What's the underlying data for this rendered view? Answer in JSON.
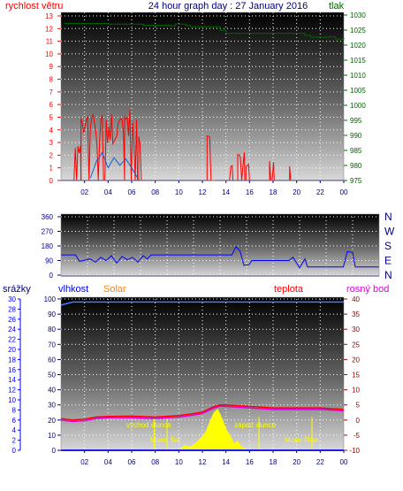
{
  "header": {
    "left_label": "rychlost větru",
    "title": "24 hour graph day : 27 January 2016",
    "right_label": "tlak"
  },
  "bottom_labels": {
    "rain": "srážky",
    "humidity": "vlhkost",
    "solar": "Solar",
    "temp": "teplota",
    "dew": "rosný bod"
  },
  "annotations": {
    "sunrise": "východ slunce",
    "sunset": "západ slunce",
    "moonset": "Moon Set",
    "moonrise": "Moon Rise"
  },
  "colors": {
    "wind": "#ff0000",
    "gust": "#1060d0",
    "pressure": "#006400",
    "direction": "#0000ff",
    "humidity": "#4080ff",
    "temp": "#ff0000",
    "dew": "#e000e0",
    "solar": "#ffff00",
    "rain": "#0000ff",
    "left_axis_wind": "#ff0000",
    "right_axis_pressure": "#006400",
    "right_axis_temp": "#a00000",
    "left_axis_rain": "#0000ff",
    "solar_label": "#ff8000"
  },
  "chart_data": [
    {
      "type": "line",
      "title": "24 hour graph day : 27 January 2016",
      "x_tick_labels": [
        "02",
        "04",
        "06",
        "08",
        "10",
        "12",
        "14",
        "16",
        "18",
        "20",
        "22",
        "00"
      ],
      "x_range_hours": [
        0,
        24
      ],
      "left_axis": {
        "label": "rychlost větru",
        "ticks": [
          0,
          1,
          2,
          3,
          4,
          5,
          6,
          7,
          8,
          9,
          10,
          11,
          12,
          13
        ],
        "ylim": [
          0,
          13
        ]
      },
      "right_axis": {
        "label": "tlak",
        "ticks": [
          975,
          980,
          985,
          990,
          995,
          1000,
          1005,
          1010,
          1015,
          1020,
          1025,
          1030
        ],
        "ylim": [
          975,
          1030
        ]
      },
      "series": [
        {
          "name": "tlak",
          "axis": "right",
          "x": [
            0.3,
            4.0,
            7.0,
            9.3,
            9.7,
            10.6,
            11.0,
            13.5,
            14.0,
            20.7,
            21.2,
            22.8,
            23.3,
            24.0
          ],
          "values": [
            1027.2,
            1027.0,
            1026.6,
            1026.4,
            1027.0,
            1026.5,
            1026.1,
            1024.9,
            1023.9,
            1023.2,
            1022.6,
            1022.8,
            1022.0,
            1022.5
          ]
        },
        {
          "name": "rychlost větru",
          "axis": "left",
          "bursts": [
            {
              "from": 1.1,
              "to": 1.7,
              "max": 3.0
            },
            {
              "from": 1.7,
              "to": 5.4,
              "max": 5.3
            },
            {
              "from": 5.4,
              "to": 6.5,
              "max": 5.7
            },
            {
              "from": 6.6,
              "to": 6.9,
              "max": 4.2
            },
            {
              "from": 12.4,
              "to": 13.1,
              "max": 3.6
            },
            {
              "from": 14.3,
              "to": 14.6,
              "max": 1.3
            },
            {
              "from": 15.0,
              "to": 15.6,
              "max": 2.4
            },
            {
              "from": 15.7,
              "to": 16.0,
              "max": 1.4
            },
            {
              "from": 17.7,
              "to": 18.1,
              "max": 1.8
            },
            {
              "from": 19.4,
              "to": 19.5,
              "max": 1.2
            }
          ]
        },
        {
          "name": "nárazy",
          "axis": "left",
          "x": [
            2.5,
            3.0,
            3.5,
            4.0,
            4.5,
            5.0,
            5.5,
            6.0,
            6.5
          ],
          "values": [
            0.2,
            1.5,
            2.2,
            1.0,
            1.8,
            1.2,
            1.7,
            1.0,
            0.2
          ]
        }
      ]
    },
    {
      "type": "line",
      "x_range_hours": [
        0,
        24
      ],
      "left_axis": {
        "ticks": [
          0,
          90,
          180,
          270,
          360
        ],
        "ylim": [
          0,
          360
        ]
      },
      "right_axis": {
        "ticks": [
          "N",
          "W",
          "S",
          "E",
          "N"
        ]
      },
      "series": [
        {
          "name": "směr větru",
          "x": [
            0.0,
            1.1,
            1.4,
            2.2,
            2.6,
            3.0,
            3.4,
            3.8,
            4.2,
            4.6,
            5.0,
            5.4,
            5.8,
            6.2,
            6.5,
            6.8,
            7.1,
            12.9,
            13.2,
            13.5,
            13.8,
            14.2,
            14.4,
            17.2,
            17.5,
            18.0,
            18.4,
            18.6,
            21.3,
            21.6,
            22.0,
            22.2,
            24.0
          ],
          "values": [
            125,
            125,
            85,
            100,
            80,
            110,
            90,
            120,
            75,
            115,
            95,
            110,
            80,
            120,
            100,
            125,
            125,
            125,
            175,
            150,
            60,
            65,
            90,
            90,
            110,
            45,
            100,
            50,
            50,
            145,
            140,
            50,
            50
          ]
        }
      ]
    },
    {
      "type": "line",
      "x_range_hours": [
        0,
        24
      ],
      "left_axis": {
        "label": "vlhkost",
        "ticks": [
          0,
          10,
          20,
          30,
          40,
          50,
          60,
          70,
          80,
          90,
          100
        ],
        "ylim": [
          0,
          100
        ]
      },
      "rain_axis": {
        "label": "srážky",
        "ticks": [
          0,
          2,
          4,
          6,
          8,
          10,
          12,
          14,
          16,
          18,
          20,
          22,
          24,
          26,
          28,
          30
        ]
      },
      "right_axis": {
        "label": "teplota",
        "ticks": [
          -10,
          -5,
          0,
          5,
          10,
          15,
          20,
          25,
          30,
          35,
          40
        ],
        "ylim": [
          -10,
          40
        ]
      },
      "series": [
        {
          "name": "vlhkost",
          "axis": "left",
          "x": [
            0.0,
            0.5,
            1.0,
            24.0
          ],
          "values": [
            96,
            97,
            98,
            98
          ]
        },
        {
          "name": "teplota",
          "axis": "right",
          "x": [
            0.0,
            1.0,
            2.0,
            3.0,
            4.0,
            6.0,
            8.0,
            10.0,
            11.0,
            12.0,
            13.0,
            13.5,
            14.0,
            16.0,
            18.0,
            20.0,
            22.0,
            24.0
          ],
          "values": [
            0.5,
            0.0,
            0.3,
            1.0,
            1.2,
            1.3,
            1.0,
            1.5,
            2.0,
            2.6,
            4.5,
            5.0,
            5.0,
            4.5,
            4.0,
            4.0,
            4.0,
            3.5
          ]
        },
        {
          "name": "rosný bod",
          "axis": "right",
          "x": [
            0.0,
            1.0,
            2.0,
            3.0,
            4.0,
            6.0,
            8.0,
            10.0,
            11.0,
            12.0,
            13.0,
            13.5,
            14.0,
            16.0,
            18.0,
            20.0,
            22.0,
            24.0
          ],
          "values": [
            0.0,
            -0.5,
            -0.2,
            0.5,
            0.8,
            0.8,
            0.5,
            1.0,
            1.5,
            2.2,
            4.0,
            4.6,
            4.5,
            4.0,
            3.5,
            3.5,
            3.5,
            3.0
          ]
        },
        {
          "name": "Solar",
          "axis": "left",
          "x": [
            9.0,
            9.5,
            10.0,
            10.5,
            11.0,
            11.5,
            12.0,
            12.3,
            12.6,
            13.0,
            13.3,
            13.6,
            14.0,
            14.3,
            14.7,
            15.0,
            15.3,
            15.7,
            16.0
          ],
          "values": [
            0,
            1,
            0,
            3,
            2,
            5,
            9,
            12,
            18,
            25,
            27,
            22,
            14,
            10,
            4,
            6,
            2,
            1,
            0
          ]
        },
        {
          "name": "srážky",
          "axis": "rain",
          "x": [
            0,
            24
          ],
          "values": [
            0,
            0
          ]
        }
      ],
      "events": [
        {
          "name": "východ slunce",
          "hour": 7.9
        },
        {
          "name": "západ slunce",
          "hour": 16.8
        },
        {
          "name": "Moon Set",
          "hour": 9.0
        },
        {
          "name": "Moon Rise",
          "hour": 21.3
        }
      ]
    }
  ]
}
